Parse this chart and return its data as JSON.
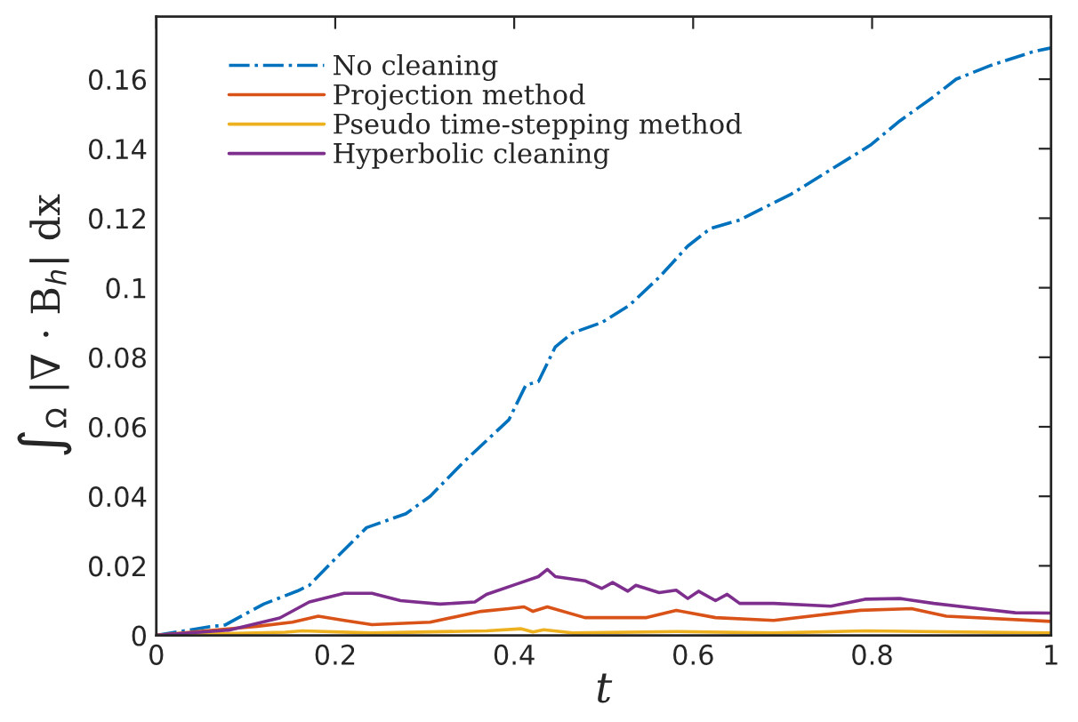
{
  "chart_data": {
    "type": "line",
    "xlabel": "t",
    "ylabel": "∫$_{Ω}$ |∇ · B$_{h}$| dx",
    "xlim": [
      0,
      1
    ],
    "xticks": [
      0,
      0.2,
      0.4,
      0.6,
      0.8,
      1
    ],
    "ylim": [
      0,
      0.178
    ],
    "yticks": [
      0,
      0.02,
      0.04,
      0.06,
      0.08,
      0.1,
      0.12,
      0.14,
      0.16
    ],
    "grid": false,
    "legend": "top left",
    "marker": "none",
    "series": [
      {
        "name": "No cleaning",
        "color": "#0072bd",
        "line_style": "dashdot",
        "x": [
          0,
          0.06,
          0.077,
          0.12,
          0.158,
          0.171,
          0.196,
          0.235,
          0.279,
          0.306,
          0.344,
          0.394,
          0.413,
          0.427,
          0.446,
          0.465,
          0.498,
          0.529,
          0.562,
          0.594,
          0.619,
          0.652,
          0.71,
          0.754,
          0.798,
          0.831,
          0.869,
          0.894,
          0.933,
          0.981,
          1
        ],
        "values": [
          0,
          0.0025,
          0.003,
          0.009,
          0.0128,
          0.0144,
          0.021,
          0.031,
          0.035,
          0.04,
          0.05,
          0.062,
          0.072,
          0.073,
          0.083,
          0.087,
          0.09,
          0.095,
          0.103,
          0.112,
          0.117,
          0.1195,
          0.127,
          0.134,
          0.141,
          0.148,
          0.155,
          0.16,
          0.164,
          0.168,
          0.169
        ]
      },
      {
        "name": "Projection method",
        "color": "#d95319",
        "line_style": "solid",
        "x": [
          0,
          0.113,
          0.152,
          0.181,
          0.21,
          0.241,
          0.306,
          0.363,
          0.394,
          0.411,
          0.421,
          0.437,
          0.479,
          0.548,
          0.581,
          0.625,
          0.69,
          0.787,
          0.844,
          0.883,
          1
        ],
        "values": [
          0,
          0.0026,
          0.0038,
          0.0055,
          0.0043,
          0.0031,
          0.0038,
          0.0069,
          0.0077,
          0.0082,
          0.0069,
          0.0082,
          0.0051,
          0.0051,
          0.0072,
          0.0051,
          0.0043,
          0.0072,
          0.0077,
          0.0055,
          0.004
        ]
      },
      {
        "name": "Pseudo time-stepping method",
        "color": "#edb120",
        "line_style": "solid",
        "x": [
          0,
          0.144,
          0.163,
          0.241,
          0.369,
          0.408,
          0.421,
          0.433,
          0.465,
          0.581,
          0.69,
          0.792,
          1
        ],
        "values": [
          0,
          0.0009,
          0.0013,
          0.0007,
          0.0013,
          0.0019,
          0.001,
          0.0016,
          0.0007,
          0.0011,
          0.0007,
          0.0013,
          0.0007
        ]
      },
      {
        "name": "Hyperbolic cleaning",
        "color": "#7e2f8e",
        "line_style": "solid",
        "x": [
          0,
          0.081,
          0.138,
          0.171,
          0.21,
          0.241,
          0.273,
          0.317,
          0.356,
          0.369,
          0.402,
          0.427,
          0.437,
          0.446,
          0.479,
          0.498,
          0.51,
          0.527,
          0.536,
          0.562,
          0.581,
          0.594,
          0.606,
          0.625,
          0.638,
          0.652,
          0.69,
          0.754,
          0.792,
          0.831,
          0.869,
          0.913,
          0.96,
          1
        ],
        "values": [
          0,
          0.0015,
          0.005,
          0.0096,
          0.0121,
          0.0121,
          0.01,
          0.009,
          0.0096,
          0.0118,
          0.0147,
          0.0169,
          0.019,
          0.0169,
          0.0157,
          0.0135,
          0.0152,
          0.0127,
          0.0144,
          0.0123,
          0.013,
          0.0106,
          0.0127,
          0.01,
          0.0118,
          0.0092,
          0.0092,
          0.0084,
          0.0104,
          0.0106,
          0.0092,
          0.0079,
          0.0065,
          0.0064
        ]
      }
    ]
  }
}
